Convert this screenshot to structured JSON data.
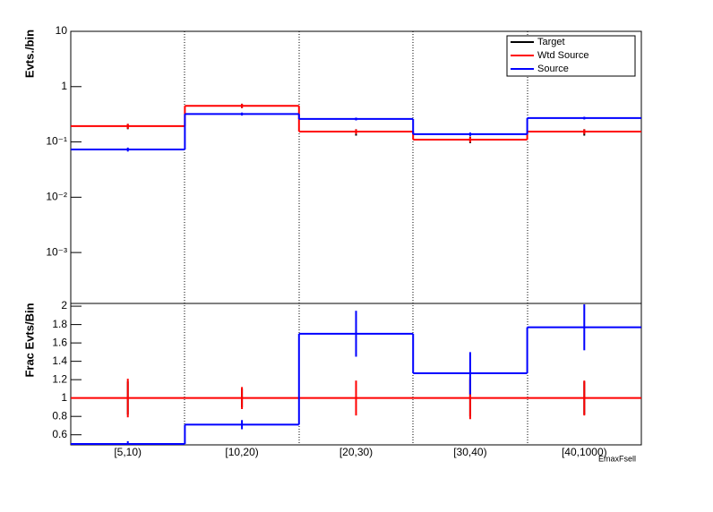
{
  "chart_data": [
    {
      "type": "step",
      "ylabel": "Evts./bin",
      "log_y": true,
      "ylim": [
        0.00012,
        10
      ],
      "yticks": [
        {
          "value": 0.001,
          "label": "10⁻³"
        },
        {
          "value": 0.01,
          "label": "10⁻²"
        },
        {
          "value": 0.1,
          "label": "10⁻¹"
        },
        1,
        10
      ],
      "legend": "top-right",
      "series": [
        {
          "name": "Target",
          "color": "#000000",
          "style": "points",
          "values": [
            0.19,
            0.45,
            0.15,
            0.11,
            0.15
          ],
          "errors": [
            0.02,
            0.04,
            0.02,
            0.015,
            0.02
          ]
        },
        {
          "name": "Wtd Source",
          "color": "#ff0000",
          "style": "step",
          "values": [
            0.193,
            0.45,
            0.154,
            0.11,
            0.154
          ],
          "errors": [
            0.02,
            0.04,
            0.015,
            0.012,
            0.015
          ]
        },
        {
          "name": "Source",
          "color": "#0000ff",
          "style": "step",
          "values": [
            0.073,
            0.32,
            0.26,
            0.138,
            0.27
          ],
          "errors": [
            0.006,
            0.02,
            0.015,
            0.01,
            0.015
          ]
        }
      ]
    },
    {
      "type": "step",
      "ylabel": "Frac Evts/Bin",
      "xlabel": "EmaxFsell",
      "categories": [
        "[5,10)",
        "[10,20)",
        "[20,30)",
        "[30,40)",
        "[40,1000)"
      ],
      "ylim": [
        0.49,
        2.03
      ],
      "yticks": [
        0.6,
        0.8,
        1,
        1.2,
        1.4,
        1.6,
        1.8,
        2
      ],
      "series": [
        {
          "color": "#000000",
          "style": "points",
          "values": [
            1,
            1,
            1,
            1,
            1
          ],
          "errors": [
            0.18,
            0.1,
            0.18,
            0.2,
            0.18
          ]
        },
        {
          "color": "#ff0000",
          "style": "step",
          "values": [
            1,
            1,
            1,
            1,
            1
          ],
          "errors": [
            0.21,
            0.12,
            0.19,
            0.23,
            0.19
          ]
        },
        {
          "color": "#0000ff",
          "style": "step",
          "values": [
            0.5,
            0.71,
            1.7,
            1.27,
            1.77
          ],
          "errors": [
            0.03,
            0.05,
            0.25,
            0.23,
            0.25
          ]
        }
      ]
    }
  ]
}
